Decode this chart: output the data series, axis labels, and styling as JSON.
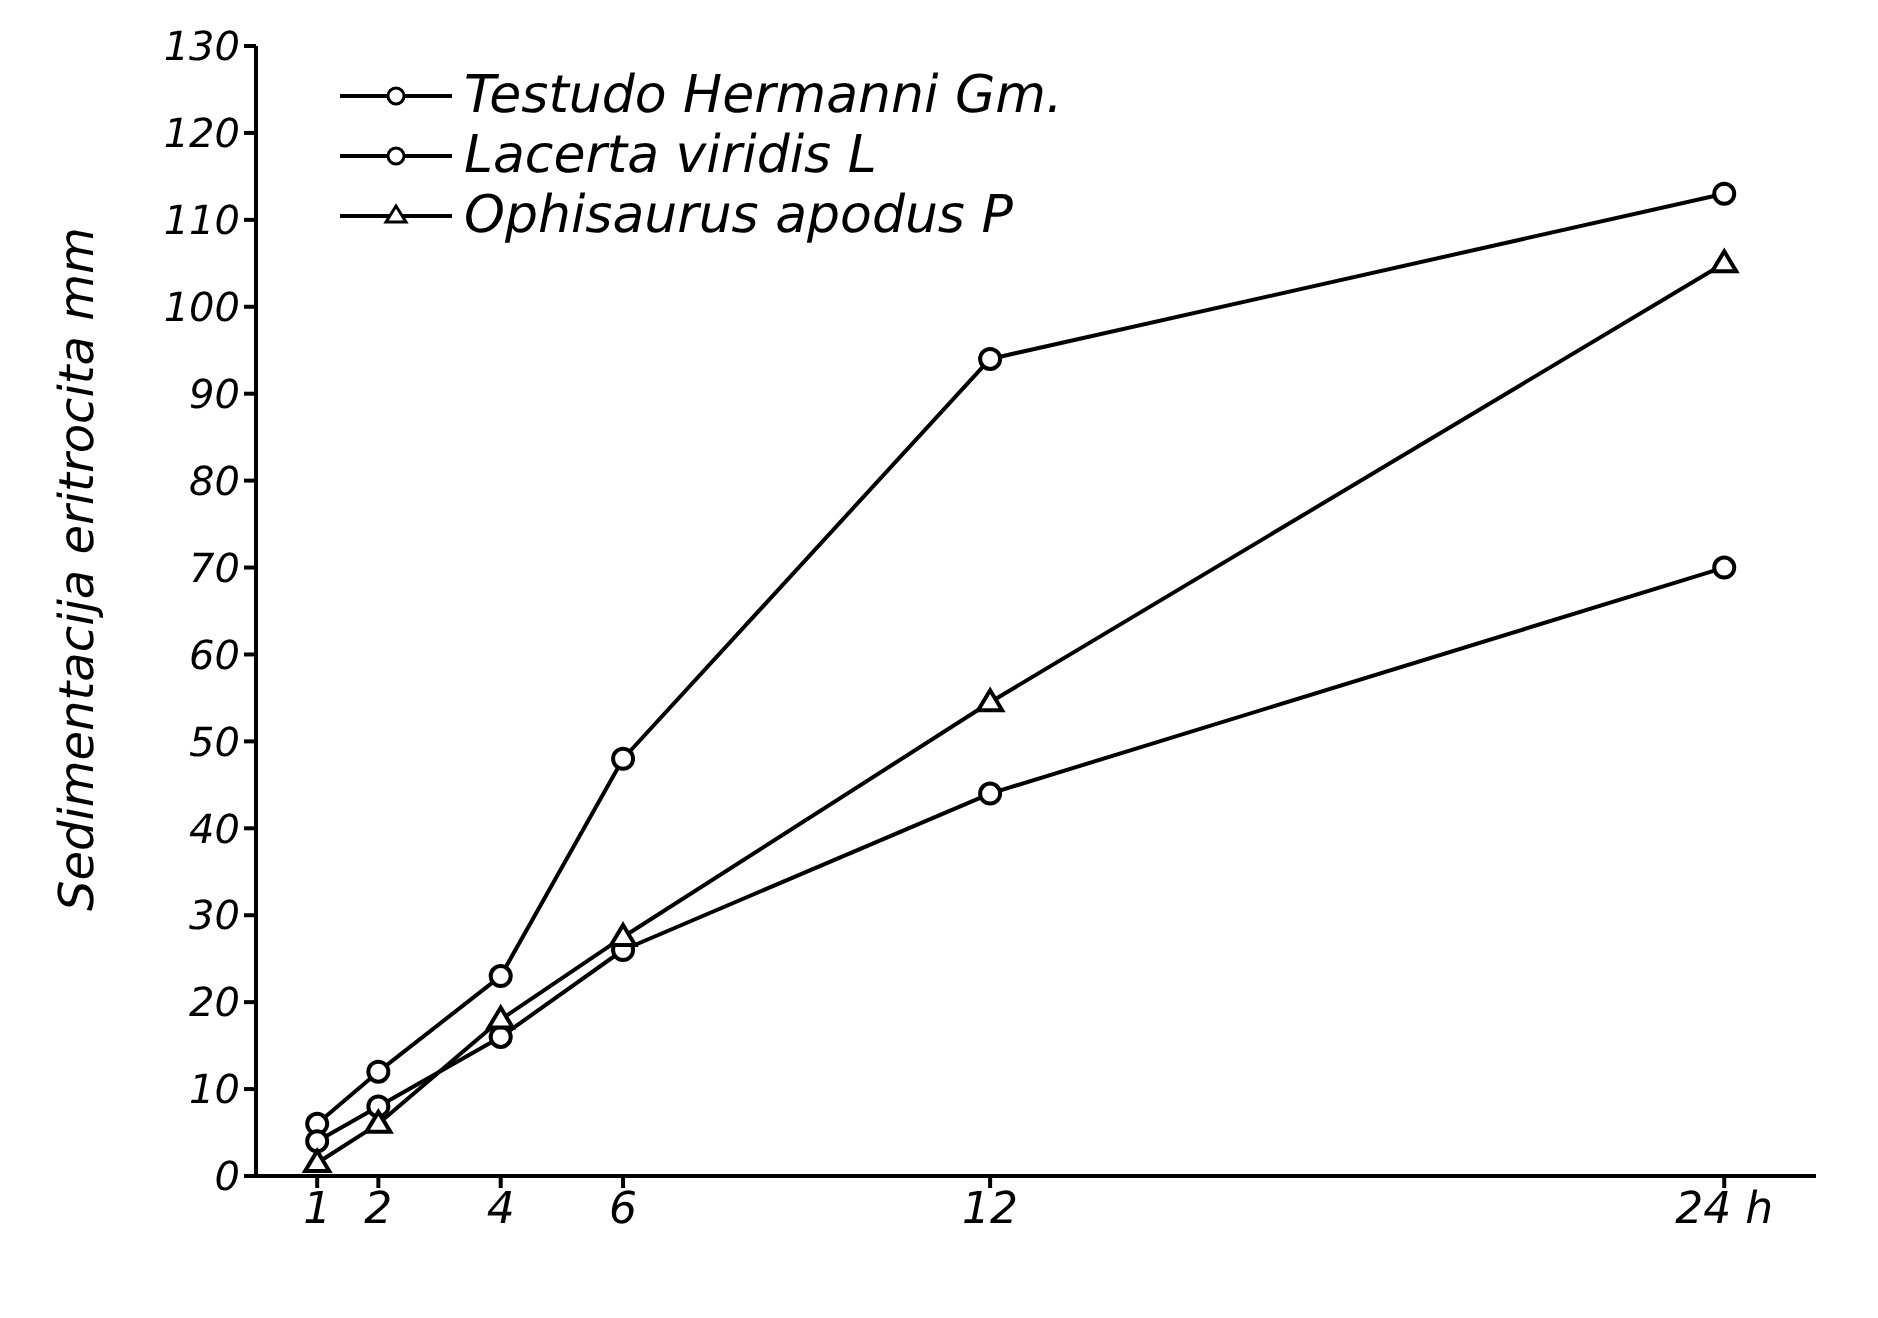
{
  "chart_data": {
    "type": "line",
    "xlabel": null,
    "ylabel": "Sedimentacija eritrocita  mm",
    "x": [
      1,
      2,
      4,
      6,
      12,
      24
    ],
    "xlim": [
      0,
      25.5
    ],
    "xticks": [
      1,
      2,
      4,
      6,
      12,
      {
        "value": 24,
        "label": "24 h"
      }
    ],
    "ylim": [
      0,
      130
    ],
    "yticks": [
      0,
      10,
      20,
      30,
      40,
      50,
      60,
      70,
      80,
      90,
      100,
      110,
      120,
      130
    ],
    "grid": false,
    "legend": "top left",
    "line_style": "solid",
    "series": [
      {
        "name": "Testudo Hermanni Gm.",
        "color": "#000000",
        "marker": "circle",
        "values": [
          6,
          12,
          23,
          48,
          94,
          113
        ]
      },
      {
        "name": "Lacerta viridis L",
        "color": "#000000",
        "marker": "circle",
        "values": [
          4,
          8,
          16,
          26,
          44,
          70
        ]
      },
      {
        "name": "Ophisaurus apodus P",
        "color": "#000000",
        "marker": "triangle",
        "values": [
          1.5,
          6,
          18,
          27.5,
          54.5,
          105
        ]
      }
    ]
  }
}
